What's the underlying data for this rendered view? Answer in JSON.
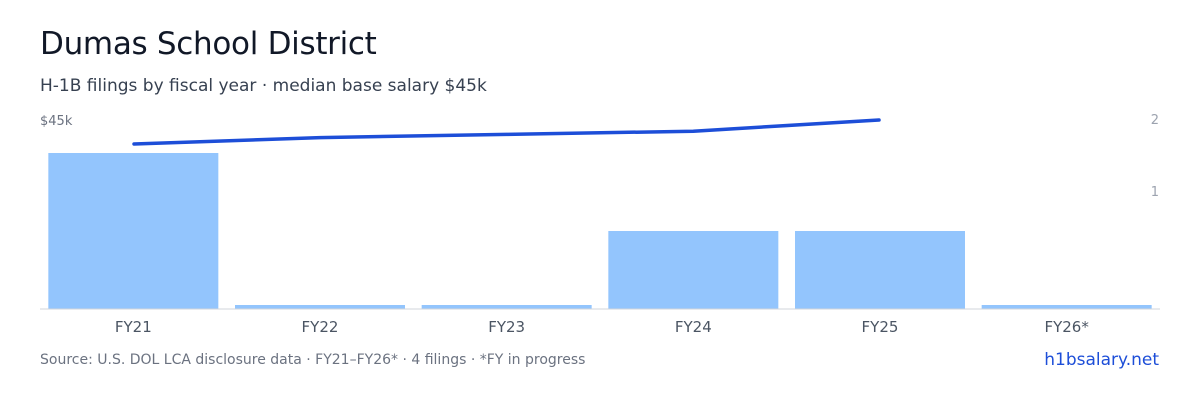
{
  "header": {
    "title": "Dumas School District",
    "subtitle": "H-1B filings by fiscal year · median base salary $45k"
  },
  "chart_data": {
    "type": "bar",
    "categories": [
      "FY21",
      "FY22",
      "FY23",
      "FY24",
      "FY25",
      "FY26*"
    ],
    "series": [
      {
        "type": "bar",
        "values": [
          2,
          0,
          0,
          1,
          1,
          0
        ],
        "color": "#93c5fd",
        "axis": "right"
      },
      {
        "type": "line",
        "values": [
          43.5,
          43.9,
          44.1,
          44.3,
          45,
          null
        ],
        "color": "#1d4ed8",
        "axis": "left"
      }
    ],
    "left_axis": {
      "ticks": [
        {
          "value": 45,
          "label": "$45k"
        }
      ]
    },
    "right_axis": {
      "ylim": [
        0,
        2
      ],
      "ticks": [
        {
          "value": 2,
          "label": "2"
        },
        {
          "value": 1,
          "label": "1"
        }
      ]
    },
    "grid": false
  },
  "footer": {
    "source": "Source: U.S. DOL LCA disclosure data · FY21–FY26* · 4 filings · *FY in progress",
    "brand": "h1bsalary.net"
  },
  "colors": {
    "bar": "#93c5fd",
    "line": "#1d4ed8",
    "axis_line": "#d1d5db",
    "tick_text": "#6b7280",
    "category_text": "#4b5563"
  }
}
